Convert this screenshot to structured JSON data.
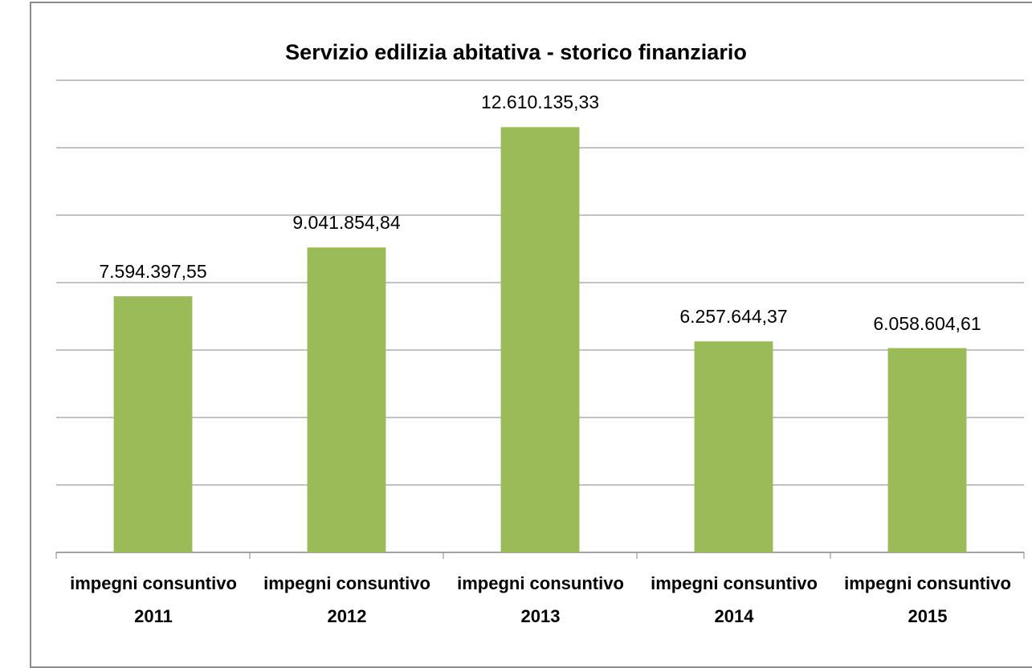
{
  "chart_data": {
    "type": "bar",
    "title": "Servizio edilizia abitativa - storico finanziario",
    "categories": [
      "impegni consuntivo 2011",
      "impegni consuntivo 2012",
      "impegni consuntivo 2013",
      "impegni consuntivo 2014",
      "impegni consuntivo 2015"
    ],
    "values": [
      7594397.55,
      9041854.84,
      12610135.33,
      6257644.37,
      6058604.61
    ],
    "value_labels": [
      "7.594.397,55",
      "9.041.854,84",
      "12.610.135,33",
      "6.257.644,37",
      "6.058.604,61"
    ],
    "color": "#9bbb59",
    "ylim": [
      0,
      14000000
    ],
    "yticks": [
      0,
      2000000,
      4000000,
      6000000,
      8000000,
      10000000,
      12000000,
      14000000
    ],
    "grid": true
  }
}
